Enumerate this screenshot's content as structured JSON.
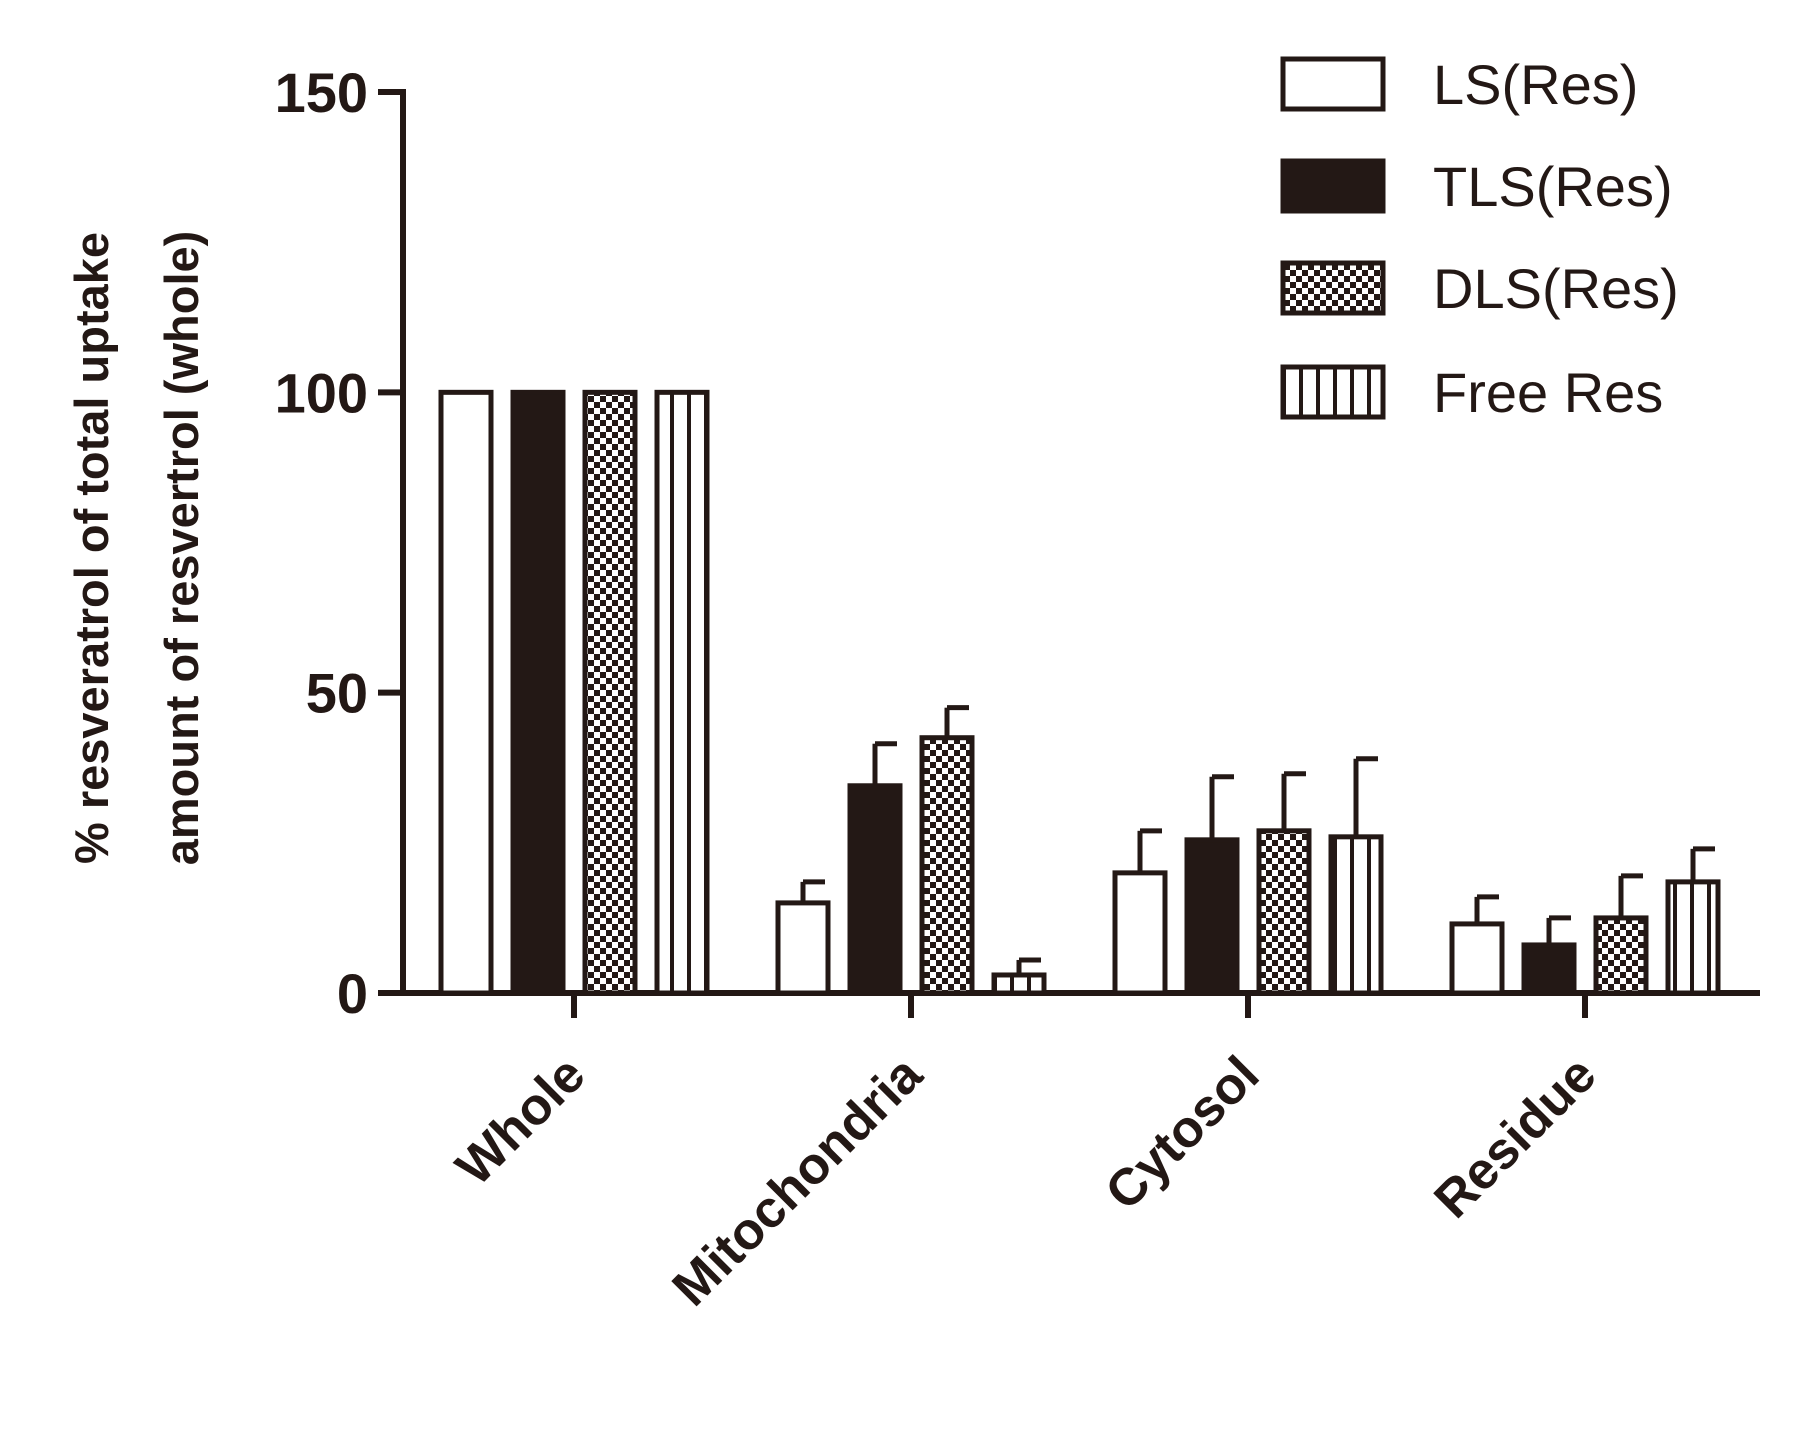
{
  "chart_data": {
    "type": "bar",
    "title": "",
    "xlabel": "",
    "ylabel_lines": [
      "% resveratrol of total uptake",
      "amount of resvertrol (whole)"
    ],
    "ylim": [
      0,
      150
    ],
    "yticks": [
      0,
      50,
      100,
      150
    ],
    "grid": false,
    "legend_position": "top-right",
    "categories": [
      "Whole",
      "Mitochondria",
      "Cytosol",
      "Residue"
    ],
    "series": [
      {
        "name": "LS(Res)",
        "pattern": "empty",
        "values": [
          100,
          15,
          20,
          11.5
        ],
        "errors": [
          0,
          3.5,
          7,
          4.5
        ]
      },
      {
        "name": "TLS(Res)",
        "pattern": "solid",
        "values": [
          100,
          34.5,
          25.5,
          8
        ],
        "errors": [
          0,
          7,
          10.5,
          4.5
        ]
      },
      {
        "name": "DLS(Res)",
        "pattern": "checker",
        "values": [
          100,
          42.5,
          27,
          12.5
        ],
        "errors": [
          0,
          5,
          9.5,
          7
        ]
      },
      {
        "name": "Free Res",
        "pattern": "vertical-lines",
        "values": [
          100,
          3,
          26,
          18.5
        ],
        "errors": [
          0,
          2.5,
          13,
          5.5
        ]
      }
    ],
    "colors": {
      "ink": "#231815",
      "background": "#ffffff"
    }
  }
}
